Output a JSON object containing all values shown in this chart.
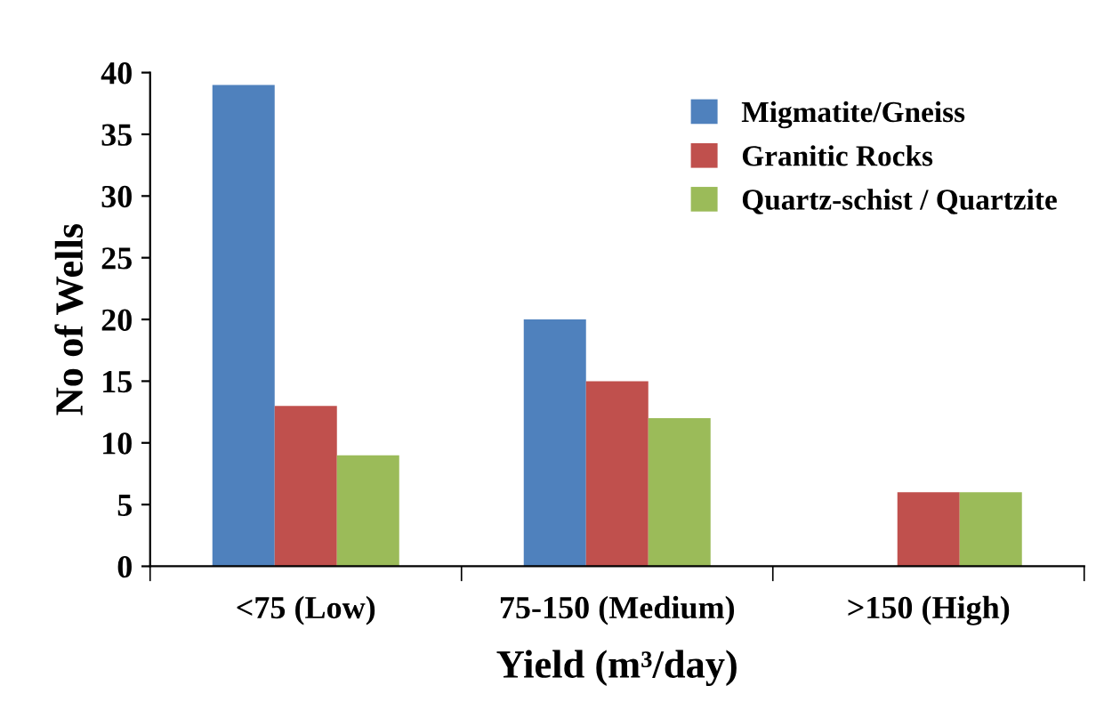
{
  "chart_data": {
    "type": "bar",
    "categories": [
      "<75 (Low)",
      "75-150 (Medium)",
      ">150 (High)"
    ],
    "series": [
      {
        "name": "Migmatite/Gneiss",
        "color": "#4f81bd",
        "values": [
          39,
          20,
          null
        ]
      },
      {
        "name": "Granitic Rocks",
        "color": "#c0504d",
        "values": [
          13,
          15,
          6
        ]
      },
      {
        "name": "Quartz-schist / Quartzite",
        "color": "#9bbb59",
        "values": [
          9,
          12,
          6
        ]
      }
    ],
    "xlabel": "Yield (m³/day)",
    "ylabel": "No of Wells",
    "ylim": [
      0,
      40
    ],
    "yticks": [
      0,
      5,
      10,
      15,
      20,
      25,
      30,
      35,
      40
    ],
    "grid": false,
    "legend": "top right"
  }
}
